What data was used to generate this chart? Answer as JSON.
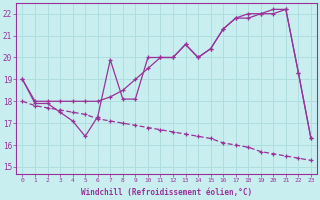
{
  "xlabel": "Windchill (Refroidissement éolien,°C)",
  "background_color": "#c8eef0",
  "grid_color": "#b0dde0",
  "line_color": "#993399",
  "x_ticks": [
    0,
    1,
    2,
    3,
    4,
    5,
    6,
    7,
    8,
    9,
    10,
    11,
    12,
    13,
    14,
    15,
    16,
    17,
    18,
    19,
    20,
    21,
    22,
    23
  ],
  "ylim": [
    14.7,
    22.5
  ],
  "xlim": [
    -0.5,
    23.5
  ],
  "yticks": [
    15,
    16,
    17,
    18,
    19,
    20,
    21,
    22
  ],
  "series1": [
    19.0,
    17.9,
    17.9,
    17.5,
    17.1,
    16.4,
    17.3,
    19.9,
    18.1,
    18.1,
    20.0,
    20.0,
    20.0,
    20.6,
    20.0,
    20.4,
    21.3,
    21.8,
    21.8,
    22.0,
    22.0,
    22.2,
    19.3,
    16.3
  ],
  "series2": [
    19.0,
    18.0,
    18.0,
    18.0,
    18.0,
    18.0,
    18.0,
    18.2,
    18.5,
    19.0,
    19.5,
    20.0,
    20.0,
    20.6,
    20.0,
    20.4,
    21.3,
    21.8,
    22.0,
    22.0,
    22.2,
    22.2,
    19.3,
    16.3
  ],
  "series3": [
    18.0,
    17.8,
    17.7,
    17.6,
    17.5,
    17.4,
    17.2,
    17.1,
    17.0,
    16.9,
    16.8,
    16.7,
    16.6,
    16.5,
    16.4,
    16.3,
    16.1,
    16.0,
    15.9,
    15.7,
    15.6,
    15.5,
    15.4,
    15.3
  ]
}
